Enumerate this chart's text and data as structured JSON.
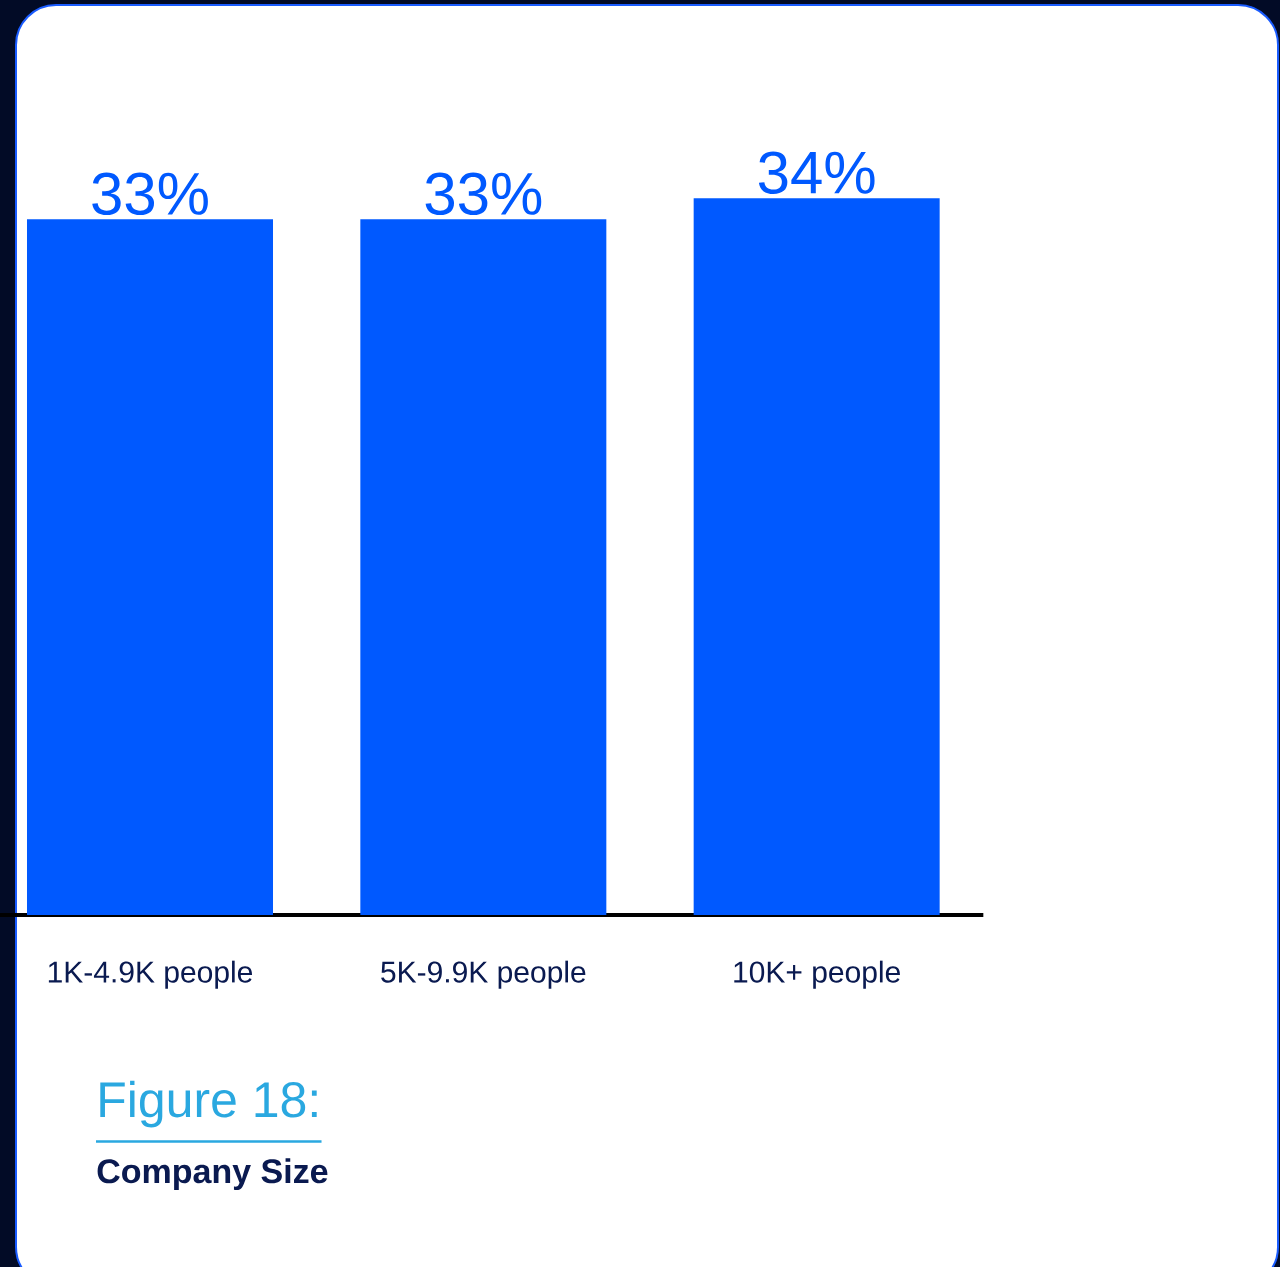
{
  "chart_data": {
    "type": "bar",
    "title": "Figure 18:",
    "subtitle": "Company Size",
    "categories": [
      "1K-4.9K people",
      "5K-9.9K people",
      "10K+ people"
    ],
    "values": [
      33,
      33,
      34
    ],
    "value_labels": [
      "33%",
      "33%",
      "34%"
    ],
    "color": "#0059ff"
  }
}
